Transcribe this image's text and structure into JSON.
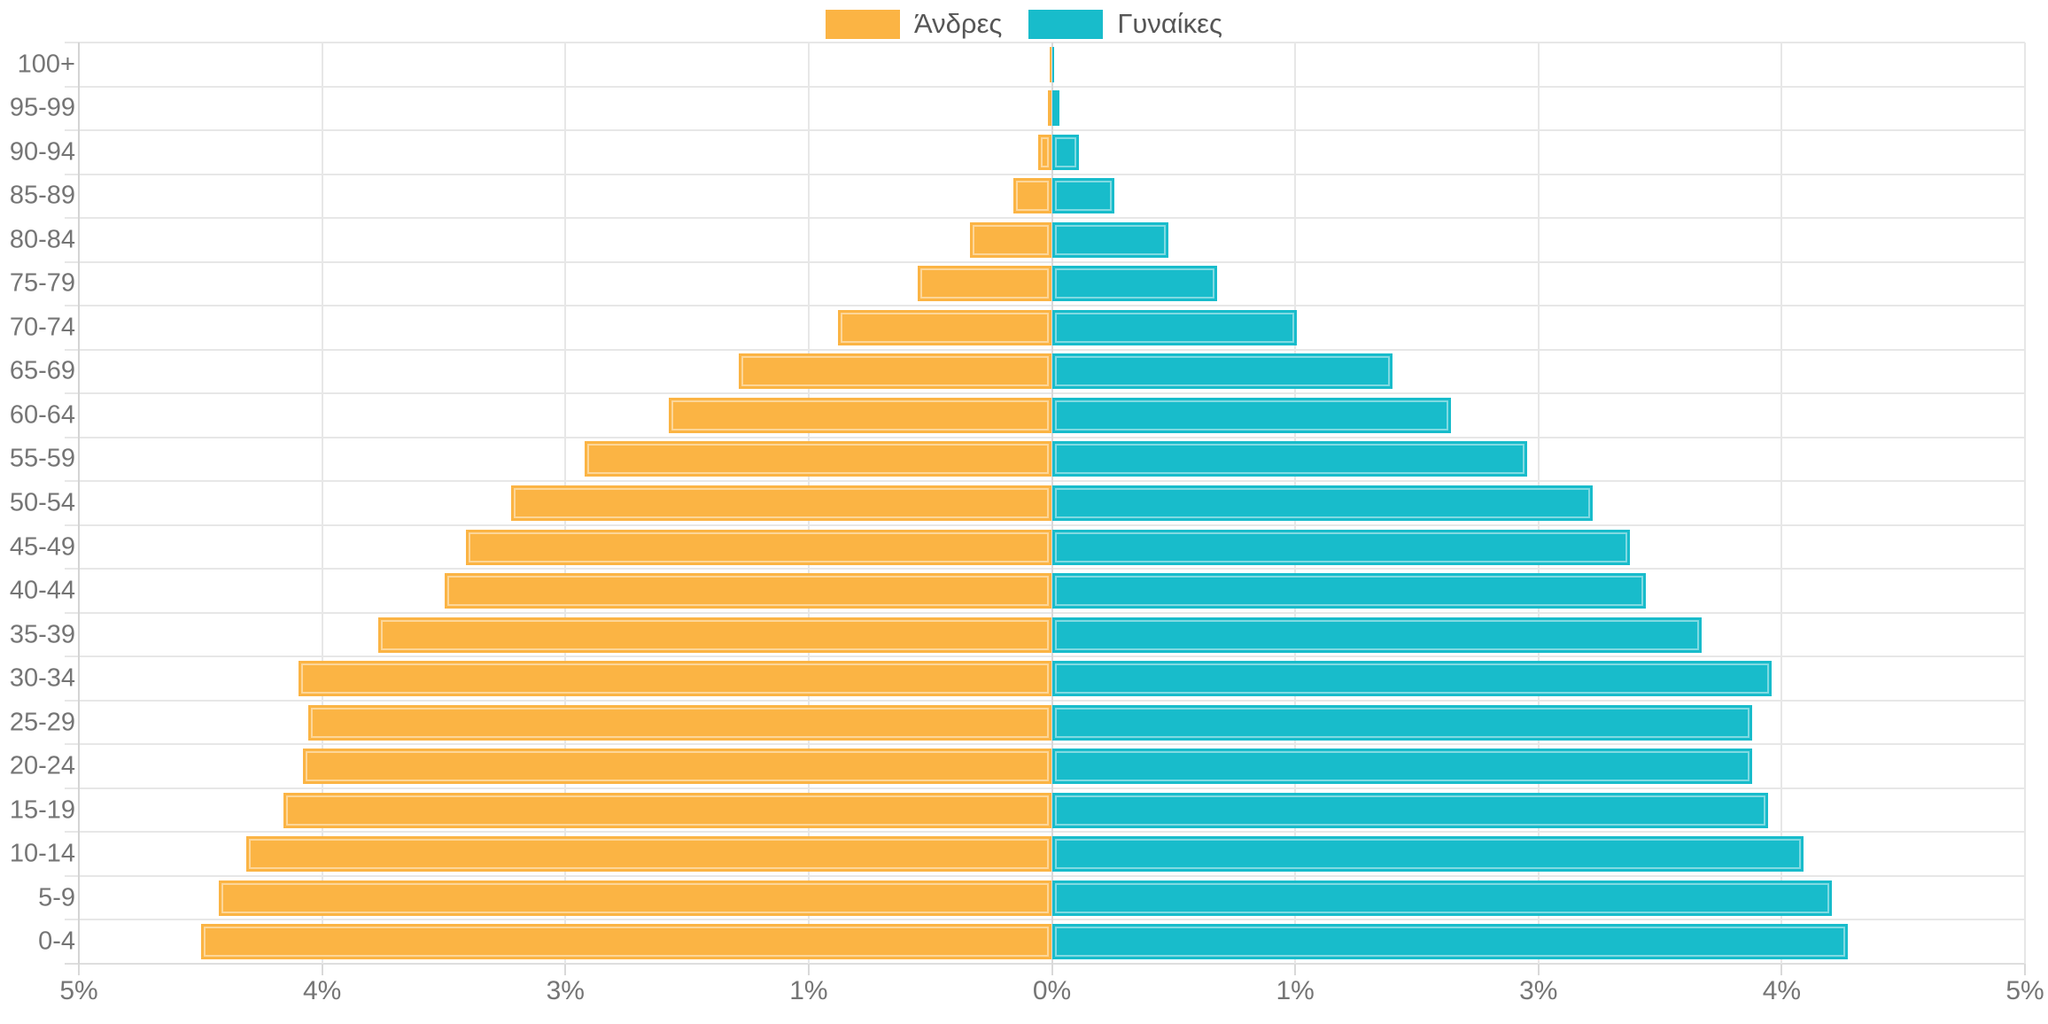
{
  "legend": {
    "items": [
      {
        "label": "Άνδρες",
        "color": "#FBB444"
      },
      {
        "label": "Γυναίκες",
        "color": "#18BCCB"
      }
    ]
  },
  "chart_data": {
    "type": "bar",
    "variant": "population_pyramid",
    "orientation": "horizontal",
    "title": "",
    "xlabel": "",
    "ylabel": "",
    "unit": "percent",
    "grid": true,
    "legend_position": "top",
    "categories": [
      "100+",
      "95-99",
      "90-94",
      "85-89",
      "80-84",
      "75-79",
      "70-74",
      "65-69",
      "60-64",
      "55-59",
      "50-54",
      "45-49",
      "40-44",
      "35-39",
      "30-34",
      "25-29",
      "20-24",
      "15-19",
      "10-14",
      "5-9",
      "0-4"
    ],
    "series": [
      {
        "name": "Άνδρες",
        "side": "left",
        "color": "#FBB444",
        "values": [
          0.01,
          0.02,
          0.07,
          0.2,
          0.42,
          0.69,
          1.1,
          1.61,
          1.97,
          2.4,
          2.78,
          3.01,
          3.12,
          3.46,
          3.87,
          3.82,
          3.85,
          3.95,
          4.14,
          4.28,
          4.37
        ]
      },
      {
        "name": "Γυναίκες",
        "side": "right",
        "color": "#18BCCB",
        "values": [
          0.01,
          0.04,
          0.14,
          0.32,
          0.6,
          0.85,
          1.26,
          1.75,
          2.05,
          2.44,
          2.78,
          2.97,
          3.05,
          3.34,
          3.7,
          3.6,
          3.6,
          3.68,
          3.86,
          4.01,
          4.09
        ]
      }
    ],
    "xlim": [
      -5,
      5
    ],
    "x_ticks": [
      {
        "pos": -5,
        "label": "5%"
      },
      {
        "pos": -3.75,
        "label": "4%"
      },
      {
        "pos": -2.5,
        "label": "3%"
      },
      {
        "pos": -1.25,
        "label": "1%"
      },
      {
        "pos": 0,
        "label": "0%"
      },
      {
        "pos": 1.25,
        "label": "1%"
      },
      {
        "pos": 2.5,
        "label": "3%"
      },
      {
        "pos": 3.75,
        "label": "4%"
      },
      {
        "pos": 5,
        "label": "5%"
      }
    ]
  },
  "colors": {
    "male": "#FBB444",
    "female": "#18BCCB",
    "grid": "#E7E7E7",
    "zero_line": "#D9D9D9",
    "tick_text": "#757575",
    "legend_text": "#565656",
    "background": "#FFFFFF"
  }
}
